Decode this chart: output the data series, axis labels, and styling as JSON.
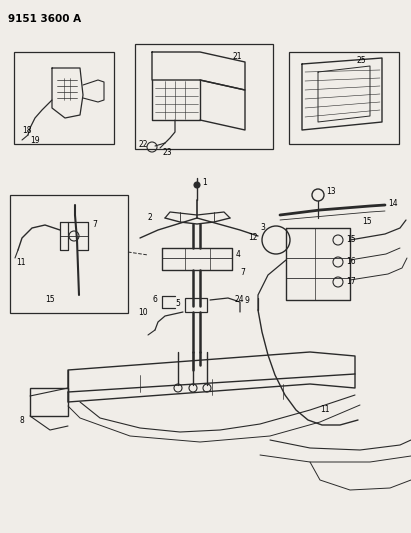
{
  "title": "9151 3600 A",
  "bg": "#f0ede8",
  "lc": "#2a2a2a",
  "tc": "#000000",
  "fig_w": 4.11,
  "fig_h": 5.33,
  "dpi": 100
}
